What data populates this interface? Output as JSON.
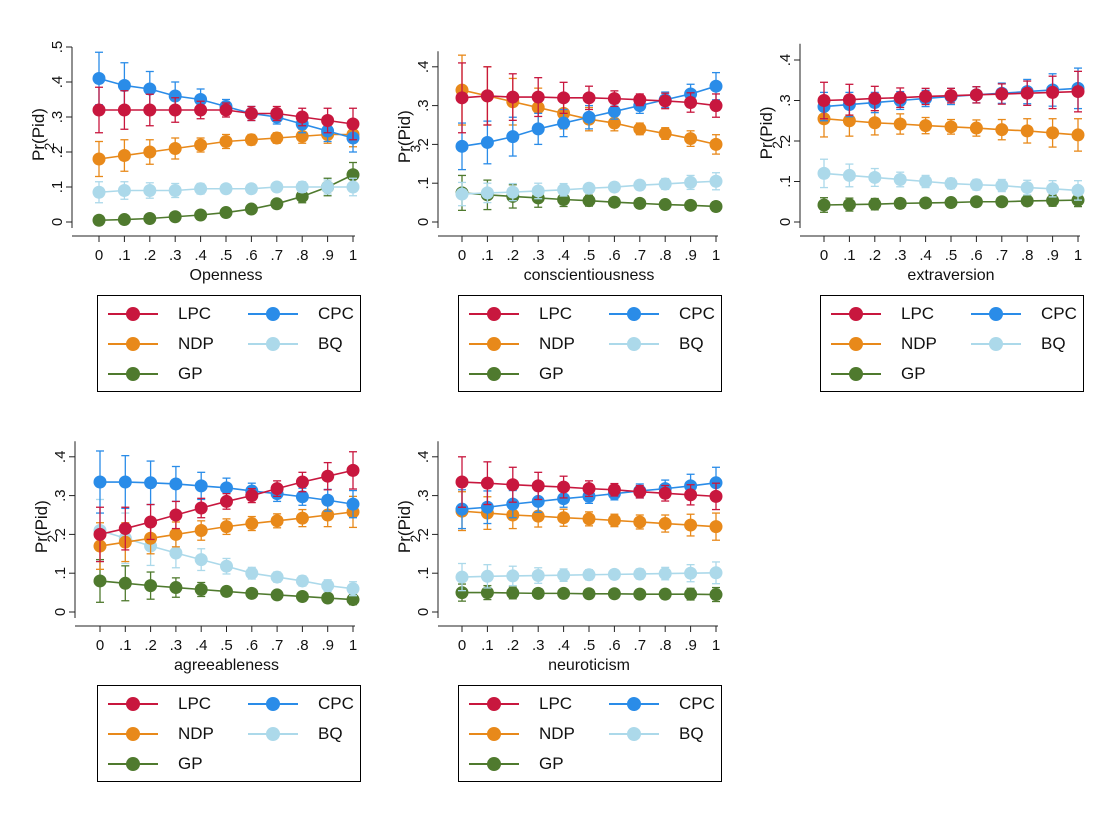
{
  "colors": {
    "LPC": "#c8173e",
    "CPC": "#2a8ce8",
    "NDP": "#e8891a",
    "BQ": "#acd9ea",
    "GP": "#4f7a2e",
    "axis": "#222222"
  },
  "chart_data": [
    {
      "type": "line",
      "xlabel": "Openness",
      "ylabel": "Pr(Pid)",
      "ylabel_sub": "2",
      "xticks": [
        "0",
        ".1",
        ".2",
        ".3",
        ".4",
        ".5",
        ".6",
        ".7",
        ".8",
        ".9",
        "1"
      ],
      "yticks": [
        "0",
        ".1",
        ".2",
        ".3",
        ".4",
        ".5"
      ],
      "x": [
        0,
        0.1,
        0.2,
        0.3,
        0.4,
        0.5,
        0.6,
        0.7,
        0.8,
        0.9,
        1
      ],
      "ylim": [
        0,
        0.5
      ],
      "series": [
        {
          "name": "LPC",
          "values": [
            0.32,
            0.32,
            0.32,
            0.32,
            0.32,
            0.32,
            0.31,
            0.31,
            0.3,
            0.29,
            0.28
          ],
          "ci": [
            0.065,
            0.055,
            0.045,
            0.035,
            0.025,
            0.02,
            0.02,
            0.02,
            0.025,
            0.035,
            0.045
          ]
        },
        {
          "name": "CPC",
          "values": [
            0.41,
            0.39,
            0.38,
            0.36,
            0.35,
            0.33,
            0.31,
            0.3,
            0.28,
            0.26,
            0.24
          ],
          "ci": [
            0.075,
            0.065,
            0.05,
            0.04,
            0.03,
            0.02,
            0.02,
            0.02,
            0.025,
            0.03,
            0.04
          ]
        },
        {
          "name": "NDP",
          "values": [
            0.18,
            0.19,
            0.2,
            0.21,
            0.22,
            0.23,
            0.235,
            0.24,
            0.245,
            0.25,
            0.25
          ],
          "ci": [
            0.05,
            0.045,
            0.035,
            0.03,
            0.02,
            0.02,
            0.015,
            0.015,
            0.02,
            0.025,
            0.035
          ]
        },
        {
          "name": "BQ",
          "values": [
            0.085,
            0.09,
            0.09,
            0.09,
            0.095,
            0.095,
            0.095,
            0.1,
            0.1,
            0.1,
            0.1
          ],
          "ci": [
            0.03,
            0.025,
            0.022,
            0.02,
            0.015,
            0.012,
            0.012,
            0.012,
            0.015,
            0.02,
            0.025
          ]
        },
        {
          "name": "GP",
          "values": [
            0.005,
            0.007,
            0.01,
            0.015,
            0.02,
            0.027,
            0.037,
            0.052,
            0.073,
            0.1,
            0.135
          ],
          "ci": [
            0.003,
            0.003,
            0.004,
            0.005,
            0.006,
            0.007,
            0.009,
            0.012,
            0.018,
            0.025,
            0.035
          ]
        }
      ]
    },
    {
      "type": "line",
      "xlabel": "conscientiousness",
      "ylabel": "Pr(Pid)",
      "ylabel_sub": "3",
      "xticks": [
        "0",
        ".1",
        ".2",
        ".3",
        ".4",
        ".5",
        ".6",
        ".7",
        ".8",
        ".9",
        "1"
      ],
      "yticks": [
        "0",
        ".1",
        ".2",
        ".3",
        ".4"
      ],
      "x": [
        0,
        0.1,
        0.2,
        0.3,
        0.4,
        0.5,
        0.6,
        0.7,
        0.8,
        0.9,
        1
      ],
      "ylim": [
        0,
        0.44
      ],
      "series": [
        {
          "name": "LPC",
          "values": [
            0.32,
            0.325,
            0.322,
            0.322,
            0.32,
            0.32,
            0.318,
            0.315,
            0.312,
            0.308,
            0.3
          ],
          "ci": [
            0.09,
            0.075,
            0.06,
            0.05,
            0.04,
            0.03,
            0.02,
            0.015,
            0.02,
            0.025,
            0.03
          ]
        },
        {
          "name": "CPC",
          "values": [
            0.195,
            0.205,
            0.22,
            0.24,
            0.255,
            0.27,
            0.285,
            0.3,
            0.315,
            0.33,
            0.35
          ],
          "ci": [
            0.06,
            0.055,
            0.05,
            0.04,
            0.035,
            0.03,
            0.02,
            0.02,
            0.02,
            0.025,
            0.035
          ]
        },
        {
          "name": "NDP",
          "values": [
            0.34,
            0.325,
            0.31,
            0.295,
            0.28,
            0.265,
            0.255,
            0.24,
            0.228,
            0.215,
            0.2
          ],
          "ci": [
            0.09,
            0.075,
            0.06,
            0.05,
            0.04,
            0.03,
            0.02,
            0.015,
            0.015,
            0.02,
            0.025
          ]
        },
        {
          "name": "BQ",
          "values": [
            0.072,
            0.075,
            0.077,
            0.08,
            0.083,
            0.087,
            0.09,
            0.095,
            0.098,
            0.102,
            0.105
          ],
          "ci": [
            0.03,
            0.025,
            0.022,
            0.02,
            0.016,
            0.012,
            0.012,
            0.012,
            0.014,
            0.018,
            0.022
          ]
        },
        {
          "name": "GP",
          "values": [
            0.075,
            0.07,
            0.066,
            0.062,
            0.058,
            0.055,
            0.051,
            0.048,
            0.045,
            0.043,
            0.04
          ],
          "ci": [
            0.045,
            0.038,
            0.03,
            0.024,
            0.018,
            0.014,
            0.01,
            0.008,
            0.008,
            0.01,
            0.012
          ]
        }
      ]
    },
    {
      "type": "line",
      "xlabel": "extraversion",
      "ylabel": "Pr(Pid)",
      "ylabel_sub": "2",
      "xticks": [
        "0",
        ".1",
        ".2",
        ".3",
        ".4",
        ".5",
        ".6",
        ".7",
        ".8",
        ".9",
        "1"
      ],
      "yticks": [
        "0",
        ".1",
        ".2",
        ".3",
        ".4"
      ],
      "x": [
        0,
        0.1,
        0.2,
        0.3,
        0.4,
        0.5,
        0.6,
        0.7,
        0.8,
        0.9,
        1
      ],
      "ylim": [
        0,
        0.44
      ],
      "series": [
        {
          "name": "LPC",
          "values": [
            0.3,
            0.302,
            0.305,
            0.307,
            0.31,
            0.312,
            0.314,
            0.316,
            0.318,
            0.32,
            0.322
          ],
          "ci": [
            0.045,
            0.038,
            0.03,
            0.024,
            0.02,
            0.018,
            0.02,
            0.025,
            0.03,
            0.04,
            0.05
          ]
        },
        {
          "name": "CPC",
          "values": [
            0.285,
            0.29,
            0.295,
            0.3,
            0.305,
            0.31,
            0.314,
            0.318,
            0.322,
            0.326,
            0.33
          ],
          "ci": [
            0.035,
            0.03,
            0.025,
            0.022,
            0.02,
            0.02,
            0.02,
            0.025,
            0.03,
            0.04,
            0.05
          ]
        },
        {
          "name": "NDP",
          "values": [
            0.255,
            0.25,
            0.245,
            0.242,
            0.238,
            0.235,
            0.232,
            0.228,
            0.225,
            0.22,
            0.215
          ],
          "ci": [
            0.045,
            0.038,
            0.03,
            0.025,
            0.02,
            0.018,
            0.02,
            0.025,
            0.03,
            0.035,
            0.04
          ]
        },
        {
          "name": "BQ",
          "values": [
            0.12,
            0.115,
            0.11,
            0.105,
            0.1,
            0.095,
            0.092,
            0.09,
            0.085,
            0.082,
            0.078
          ],
          "ci": [
            0.035,
            0.028,
            0.022,
            0.018,
            0.015,
            0.013,
            0.013,
            0.015,
            0.018,
            0.02,
            0.024
          ]
        },
        {
          "name": "GP",
          "values": [
            0.042,
            0.043,
            0.044,
            0.046,
            0.047,
            0.048,
            0.05,
            0.05,
            0.052,
            0.053,
            0.054
          ],
          "ci": [
            0.018,
            0.016,
            0.014,
            0.012,
            0.01,
            0.009,
            0.009,
            0.01,
            0.012,
            0.014,
            0.016
          ]
        }
      ]
    },
    {
      "type": "line",
      "xlabel": "agreeableness",
      "ylabel": "Pr(Pid)",
      "ylabel_sub": "2",
      "xticks": [
        "0",
        ".1",
        ".2",
        ".3",
        ".4",
        ".5",
        ".6",
        ".7",
        ".8",
        ".9",
        "1"
      ],
      "yticks": [
        "0",
        ".1",
        ".2",
        ".3",
        ".4"
      ],
      "x": [
        0,
        0.1,
        0.2,
        0.3,
        0.4,
        0.5,
        0.6,
        0.7,
        0.8,
        0.9,
        1
      ],
      "ylim": [
        0,
        0.44
      ],
      "series": [
        {
          "name": "LPC",
          "values": [
            0.2,
            0.215,
            0.232,
            0.25,
            0.268,
            0.285,
            0.3,
            0.318,
            0.335,
            0.35,
            0.365
          ],
          "ci": [
            0.07,
            0.055,
            0.045,
            0.035,
            0.025,
            0.02,
            0.018,
            0.02,
            0.025,
            0.035,
            0.048
          ]
        },
        {
          "name": "CPC",
          "values": [
            0.335,
            0.335,
            0.333,
            0.33,
            0.325,
            0.32,
            0.312,
            0.305,
            0.297,
            0.288,
            0.278
          ],
          "ci": [
            0.08,
            0.068,
            0.056,
            0.045,
            0.035,
            0.025,
            0.02,
            0.02,
            0.022,
            0.028,
            0.035
          ]
        },
        {
          "name": "NDP",
          "values": [
            0.17,
            0.18,
            0.19,
            0.2,
            0.21,
            0.22,
            0.228,
            0.235,
            0.242,
            0.25,
            0.258
          ],
          "ci": [
            0.06,
            0.05,
            0.04,
            0.032,
            0.025,
            0.02,
            0.018,
            0.018,
            0.022,
            0.03,
            0.04
          ]
        },
        {
          "name": "BQ",
          "values": [
            0.21,
            0.19,
            0.17,
            0.152,
            0.135,
            0.118,
            0.1,
            0.09,
            0.08,
            0.068,
            0.06
          ],
          "ci": [
            0.08,
            0.065,
            0.05,
            0.038,
            0.028,
            0.02,
            0.015,
            0.013,
            0.013,
            0.015,
            0.018
          ]
        },
        {
          "name": "GP",
          "values": [
            0.08,
            0.074,
            0.068,
            0.063,
            0.058,
            0.053,
            0.048,
            0.044,
            0.04,
            0.036,
            0.032
          ],
          "ci": [
            0.055,
            0.045,
            0.035,
            0.025,
            0.018,
            0.012,
            0.01,
            0.009,
            0.009,
            0.011,
            0.013
          ]
        }
      ]
    },
    {
      "type": "line",
      "xlabel": "neuroticism",
      "ylabel": "Pr(Pid)",
      "ylabel_sub": "2",
      "xticks": [
        "0",
        ".1",
        ".2",
        ".3",
        ".4",
        ".5",
        ".6",
        ".7",
        ".8",
        ".9",
        "1"
      ],
      "yticks": [
        "0",
        ".1",
        ".2",
        ".3",
        ".4"
      ],
      "x": [
        0,
        0.1,
        0.2,
        0.3,
        0.4,
        0.5,
        0.6,
        0.7,
        0.8,
        0.9,
        1
      ],
      "ylim": [
        0,
        0.44
      ],
      "series": [
        {
          "name": "LPC",
          "values": [
            0.335,
            0.332,
            0.328,
            0.325,
            0.322,
            0.318,
            0.315,
            0.31,
            0.306,
            0.302,
            0.298
          ],
          "ci": [
            0.065,
            0.055,
            0.045,
            0.035,
            0.028,
            0.02,
            0.016,
            0.016,
            0.02,
            0.026,
            0.034
          ]
        },
        {
          "name": "CPC",
          "values": [
            0.265,
            0.27,
            0.278,
            0.285,
            0.292,
            0.298,
            0.305,
            0.312,
            0.318,
            0.325,
            0.333
          ],
          "ci": [
            0.05,
            0.042,
            0.035,
            0.028,
            0.022,
            0.018,
            0.016,
            0.018,
            0.022,
            0.03,
            0.04
          ]
        },
        {
          "name": "NDP",
          "values": [
            0.26,
            0.255,
            0.25,
            0.247,
            0.243,
            0.24,
            0.236,
            0.232,
            0.228,
            0.224,
            0.22
          ],
          "ci": [
            0.05,
            0.042,
            0.035,
            0.028,
            0.022,
            0.018,
            0.016,
            0.018,
            0.022,
            0.028,
            0.035
          ]
        },
        {
          "name": "BQ",
          "values": [
            0.09,
            0.092,
            0.093,
            0.094,
            0.095,
            0.096,
            0.097,
            0.098,
            0.099,
            0.1,
            0.101
          ],
          "ci": [
            0.035,
            0.03,
            0.025,
            0.02,
            0.016,
            0.013,
            0.012,
            0.013,
            0.016,
            0.022,
            0.028
          ]
        },
        {
          "name": "GP",
          "values": [
            0.05,
            0.05,
            0.049,
            0.048,
            0.048,
            0.047,
            0.047,
            0.046,
            0.046,
            0.046,
            0.045
          ],
          "ci": [
            0.022,
            0.018,
            0.015,
            0.012,
            0.01,
            0.009,
            0.009,
            0.01,
            0.012,
            0.015,
            0.018
          ]
        }
      ]
    }
  ],
  "legends": [
    {
      "items": [
        "LPC",
        "CPC",
        "NDP",
        "BQ",
        "GP"
      ]
    },
    {
      "items": [
        "LPC",
        "CPC",
        "NDP",
        "BQ",
        "GP"
      ]
    },
    {
      "items": [
        "LPC",
        "CPC",
        "NDP",
        "BQ",
        "GP"
      ]
    },
    {
      "items": [
        "LPC",
        "CPC",
        "NDP",
        "BQ",
        "GP"
      ]
    },
    {
      "items": [
        "LPC",
        "CPC",
        "NDP",
        "BQ",
        "GP"
      ]
    }
  ]
}
